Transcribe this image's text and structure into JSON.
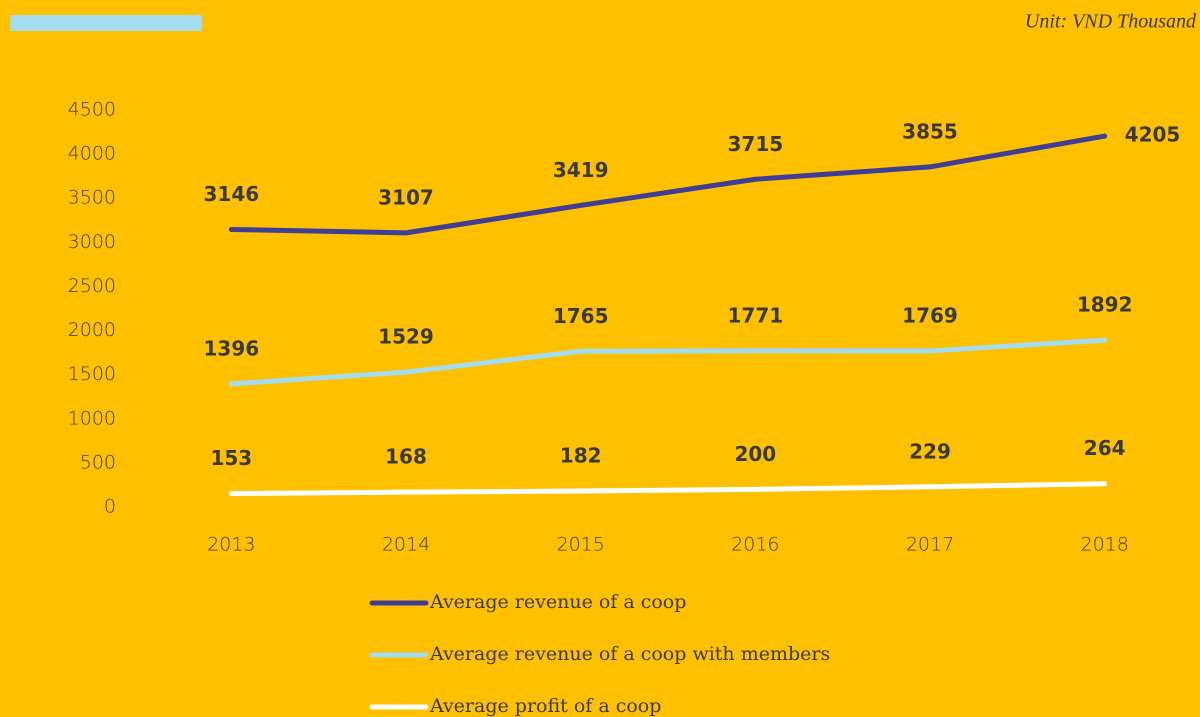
{
  "chart_data": {
    "type": "line",
    "annotation": "Unit: VND Thousand",
    "categories": [
      "2013",
      "2014",
      "2015",
      "2016",
      "2017",
      "2018"
    ],
    "series": [
      {
        "name": "Average revenue of a coop",
        "color": "#3F3D96",
        "values": [
          3146,
          3107,
          3419,
          3715,
          3855,
          4205
        ]
      },
      {
        "name": "Average revenue of a coop with members",
        "color": "#A5DDF0",
        "values": [
          1396,
          1529,
          1765,
          1771,
          1769,
          1892
        ]
      },
      {
        "name": "Average profit of a coop",
        "color": "#FFFFFF",
        "values": [
          153,
          168,
          182,
          200,
          229,
          264
        ]
      }
    ],
    "ylim": [
      0,
      4500
    ],
    "yticks": [
      0,
      500,
      1000,
      1500,
      2000,
      2500,
      3000,
      3500,
      4000,
      4500
    ],
    "grid": false,
    "legend": "bottom"
  }
}
